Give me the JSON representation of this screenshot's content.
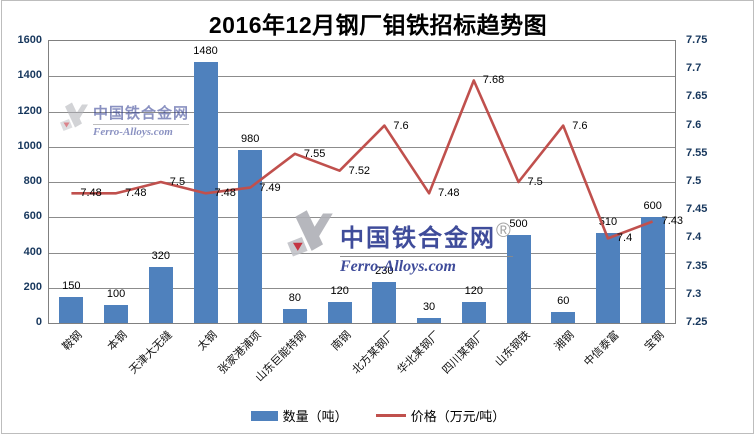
{
  "title": "2016年12月钢厂钼铁招标趋势图",
  "watermark": {
    "cn": "中国铁合金网",
    "en": "Ferro-Alloys.com",
    "reg": "®"
  },
  "legend": {
    "bar_label": "数量（吨）",
    "line_label": "价格（万元/吨）"
  },
  "colors": {
    "bar": "#4F81BD",
    "line": "#C0504D",
    "grid": "#8c8c8c",
    "axis_text": "#17375d",
    "watermark_blue": "#2b3990",
    "logo_gray": "#afb0b6",
    "logo_red": "#be202e"
  },
  "chart_data": {
    "type": "combo-bar-line",
    "title": "2016年12月钢厂钼铁招标趋势图",
    "categories": [
      "鞍钢",
      "本钢",
      "天津大无缝",
      "太钢",
      "张家港浦项",
      "山东巨能特钢",
      "南钢",
      "北方某钢厂",
      "华北某钢厂",
      "四川某钢厂",
      "山东钢铁",
      "湘钢",
      "中信泰富",
      "宝钢"
    ],
    "series": [
      {
        "name": "数量（吨）",
        "type": "bar",
        "axis": "left",
        "color": "#4F81BD",
        "values": [
          150,
          100,
          320,
          1480,
          980,
          80,
          120,
          230,
          30,
          120,
          500,
          60,
          510,
          600
        ]
      },
      {
        "name": "价格（万元/吨）",
        "type": "line",
        "axis": "right",
        "color": "#C0504D",
        "values": [
          7.48,
          7.48,
          7.5,
          7.48,
          7.49,
          7.55,
          7.52,
          7.6,
          7.48,
          7.68,
          7.5,
          7.6,
          7.4,
          7.43
        ]
      }
    ],
    "left_axis": {
      "min": 0,
      "max": 1600,
      "step": 200,
      "tick_labels": [
        "0",
        "200",
        "400",
        "600",
        "800",
        "1000",
        "1200",
        "1400",
        "1600"
      ]
    },
    "right_axis": {
      "min": 7.25,
      "max": 7.75,
      "step": 0.05,
      "tick_labels": [
        "7.25",
        "7.3",
        "7.35",
        "7.4",
        "7.45",
        "7.5",
        "7.55",
        "7.6",
        "7.65",
        "7.7",
        "7.75"
      ]
    },
    "grid": true,
    "data_labels": true,
    "legend_position": "bottom"
  }
}
